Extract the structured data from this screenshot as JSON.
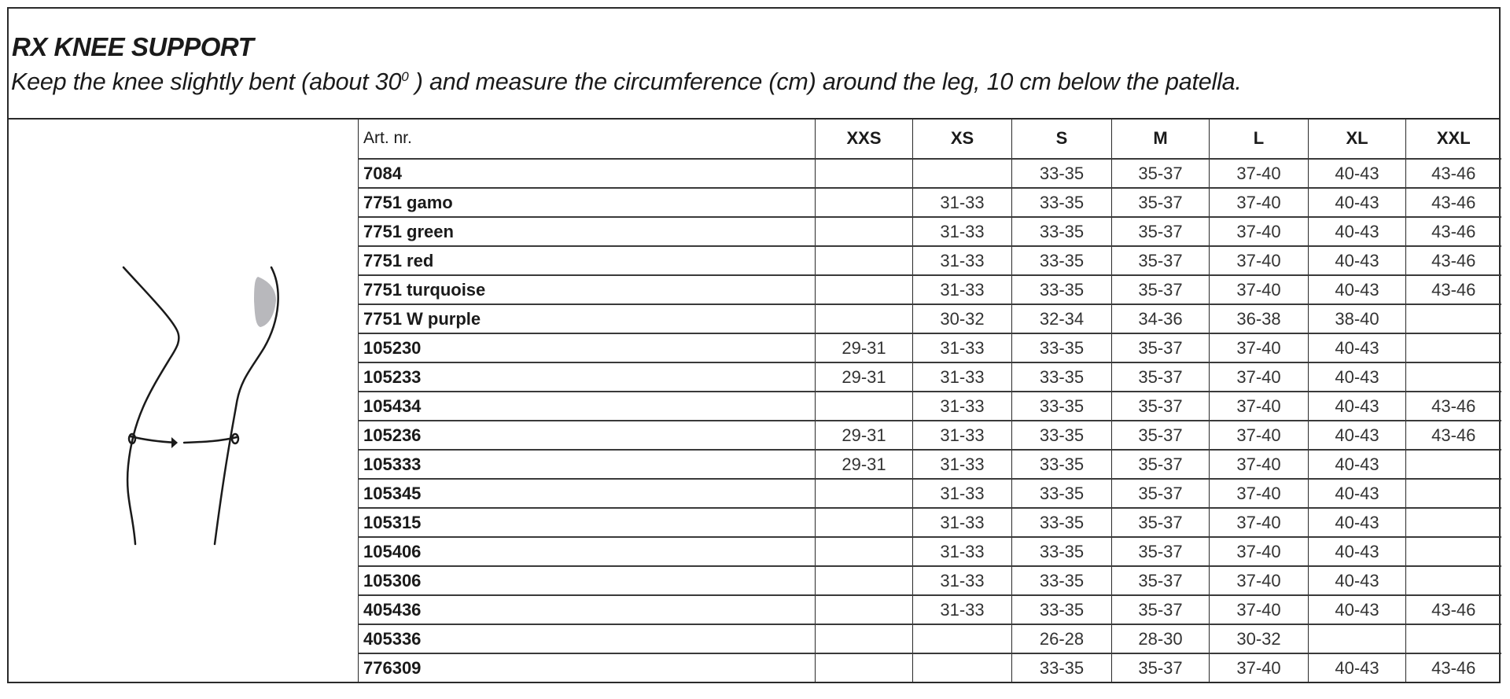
{
  "header": {
    "title": "RX KNEE SUPPORT",
    "subtitle_before": "Keep the knee slightly bent (about 30",
    "subtitle_sup": "0",
    "subtitle_after": " ) and measure the circumference (cm) around the leg, 10 cm below the patella."
  },
  "figure": {
    "icon": "knee-measurement-illustration",
    "shade_color": "#b8b8bc"
  },
  "table": {
    "columns": [
      "Art. nr.",
      "XXS",
      "XS",
      "S",
      "M",
      "L",
      "XL",
      "XXL"
    ],
    "rows": [
      {
        "art": "7084",
        "sizes": [
          "",
          "",
          "33-35",
          "35-37",
          "37-40",
          "40-43",
          "43-46"
        ]
      },
      {
        "art": "7751 gamo",
        "sizes": [
          "",
          "31-33",
          "33-35",
          "35-37",
          "37-40",
          "40-43",
          "43-46"
        ]
      },
      {
        "art": "7751 green",
        "sizes": [
          "",
          "31-33",
          "33-35",
          "35-37",
          "37-40",
          "40-43",
          "43-46"
        ]
      },
      {
        "art": "7751 red",
        "sizes": [
          "",
          "31-33",
          "33-35",
          "35-37",
          "37-40",
          "40-43",
          "43-46"
        ]
      },
      {
        "art": "7751 turquoise",
        "sizes": [
          "",
          "31-33",
          "33-35",
          "35-37",
          "37-40",
          "40-43",
          "43-46"
        ]
      },
      {
        "art": "7751 W purple",
        "sizes": [
          "",
          "30-32",
          "32-34",
          "34-36",
          "36-38",
          "38-40",
          ""
        ]
      },
      {
        "art": "105230",
        "sizes": [
          "29-31",
          "31-33",
          "33-35",
          "35-37",
          "37-40",
          "40-43",
          ""
        ]
      },
      {
        "art": "105233",
        "sizes": [
          "29-31",
          "31-33",
          "33-35",
          "35-37",
          "37-40",
          "40-43",
          ""
        ]
      },
      {
        "art": "105434",
        "sizes": [
          "",
          "31-33",
          "33-35",
          "35-37",
          "37-40",
          "40-43",
          "43-46"
        ]
      },
      {
        "art": "105236",
        "sizes": [
          "29-31",
          "31-33",
          "33-35",
          "35-37",
          "37-40",
          "40-43",
          "43-46"
        ]
      },
      {
        "art": "105333",
        "sizes": [
          "29-31",
          "31-33",
          "33-35",
          "35-37",
          "37-40",
          "40-43",
          ""
        ]
      },
      {
        "art": "105345",
        "sizes": [
          "",
          "31-33",
          "33-35",
          "35-37",
          "37-40",
          "40-43",
          ""
        ]
      },
      {
        "art": "105315",
        "sizes": [
          "",
          "31-33",
          "33-35",
          "35-37",
          "37-40",
          "40-43",
          ""
        ]
      },
      {
        "art": "105406",
        "sizes": [
          "",
          "31-33",
          "33-35",
          "35-37",
          "37-40",
          "40-43",
          ""
        ]
      },
      {
        "art": "105306",
        "sizes": [
          "",
          "31-33",
          "33-35",
          "35-37",
          "37-40",
          "40-43",
          ""
        ]
      },
      {
        "art": "405436",
        "sizes": [
          "",
          "31-33",
          "33-35",
          "35-37",
          "37-40",
          "40-43",
          "43-46"
        ]
      },
      {
        "art": "405336",
        "sizes": [
          "",
          "",
          "26-28",
          "28-30",
          "30-32",
          "",
          ""
        ]
      },
      {
        "art": "776309",
        "sizes": [
          "",
          "",
          "33-35",
          "35-37",
          "37-40",
          "40-43",
          "43-46"
        ]
      }
    ]
  }
}
